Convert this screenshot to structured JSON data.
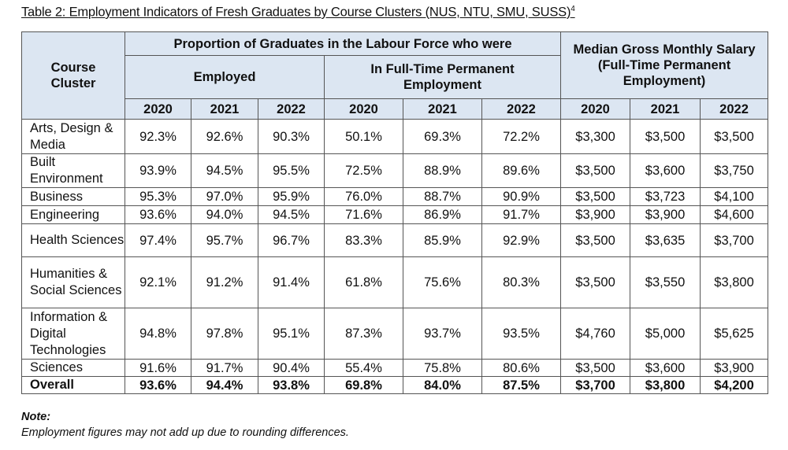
{
  "title": "Table 2: Employment Indicators of Fresh Graduates by Course Clusters (NUS, NTU, SMU, SUSS)",
  "title_footnote": "4",
  "header": {
    "course_cluster": "Course Cluster",
    "proportion": "Proportion of Graduates in the Labour Force who were",
    "employed": "Employed",
    "ftpe": "In Full-Time Permanent Employment",
    "salary": "Median Gross Monthly Salary (Full-Time Permanent Employment)",
    "years": [
      "2020",
      "2021",
      "2022",
      "2020",
      "2021",
      "2022",
      "2020",
      "2021",
      "2022"
    ]
  },
  "rows": [
    {
      "name": "Arts, Design & Media",
      "values": [
        "92.3%",
        "92.6%",
        "90.3%",
        "50.1%",
        "69.3%",
        "72.2%",
        "$3,300",
        "$3,500",
        "$3,500"
      ]
    },
    {
      "name": "Built Environment",
      "values": [
        "93.9%",
        "94.5%",
        "95.5%",
        "72.5%",
        "88.9%",
        "89.6%",
        "$3,500",
        "$3,600",
        "$3,750"
      ]
    },
    {
      "name": "Business",
      "values": [
        "95.3%",
        "97.0%",
        "95.9%",
        "76.0%",
        "88.7%",
        "90.9%",
        "$3,500",
        "$3,723",
        "$4,100"
      ]
    },
    {
      "name": "Engineering",
      "values": [
        "93.6%",
        "94.0%",
        "94.5%",
        "71.6%",
        "86.9%",
        "91.7%",
        "$3,900",
        "$3,900",
        "$4,600"
      ]
    },
    {
      "name": "Health Sciences",
      "values": [
        "97.4%",
        "95.7%",
        "96.7%",
        "83.3%",
        "85.9%",
        "92.9%",
        "$3,500",
        "$3,635",
        "$3,700"
      ]
    },
    {
      "name": "Humanities & Social Sciences",
      "values": [
        "92.1%",
        "91.2%",
        "91.4%",
        "61.8%",
        "75.6%",
        "80.3%",
        "$3,500",
        "$3,550",
        "$3,800"
      ]
    },
    {
      "name": "Information & Digital Technologies",
      "values": [
        "94.8%",
        "97.8%",
        "95.1%",
        "87.3%",
        "93.7%",
        "93.5%",
        "$4,760",
        "$5,000",
        "$5,625"
      ]
    },
    {
      "name": "Sciences",
      "values": [
        "91.6%",
        "91.7%",
        "90.4%",
        "55.4%",
        "75.8%",
        "80.6%",
        "$3,500",
        "$3,600",
        "$3,900"
      ]
    }
  ],
  "overall": {
    "name": "Overall",
    "values": [
      "93.6%",
      "94.4%",
      "93.8%",
      "69.8%",
      "84.0%",
      "87.5%",
      "$3,700",
      "$3,800",
      "$4,200"
    ]
  },
  "note": {
    "label": "Note:",
    "text": "Employment figures may not add up due to rounding differences."
  },
  "colors": {
    "header_bg": "#dce6f2",
    "border": "#555555"
  }
}
